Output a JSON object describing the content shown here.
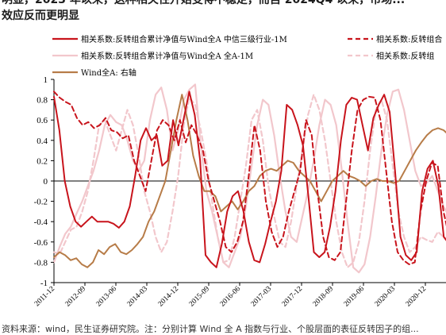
{
  "header": {
    "line1": "明显，2023 年以来，这种相关性开始变得不稳定，而自 2024Q4 以来，市场...",
    "line2": "效应反而更明显"
  },
  "footer": {
    "source": "资料来源：wind，民生证券研究院。注：分别计算 Wind 全 A 指数与行业、个股层面的表征反转因子的组..."
  },
  "colors": {
    "dark_red": "#c8141c",
    "pink": "#f2c7cc",
    "brown": "#b77c48",
    "axis": "#000000"
  },
  "chart_data": {
    "type": "line",
    "title": "",
    "xlabel": "",
    "ylabel": "",
    "ylim": [
      -1,
      1
    ],
    "yticks": [
      "1",
      "0.8",
      "0.6",
      "0.4",
      "0.2",
      "0",
      "-0.2",
      "-0.4",
      "-0.6",
      "-0.8",
      "-1"
    ],
    "xticks": [
      "2011-12",
      "2012-09",
      "2013-06",
      "2014-03",
      "2014-12",
      "2015-09",
      "2016-06",
      "2017-03",
      "2017-12",
      "2018-09",
      "2019-06",
      "2020-03",
      "2020-12"
    ],
    "x_start": "2011-12",
    "x_step": "1M",
    "legend": [
      {
        "label": "相关系数:反转组合累计净值与Wind全A 中信三级行业-1M",
        "style": "solid",
        "color": "#c8141c"
      },
      {
        "label": "相关系数:反转组合",
        "style": "dashed",
        "color": "#c8141c"
      },
      {
        "label": "相关系数:反转组合累计净值与Wind全A 全A-1M",
        "style": "solid",
        "color": "#f2c7cc"
      },
      {
        "label": "相关系数:反转组",
        "style": "dashed",
        "color": "#f2c7cc"
      },
      {
        "label": "Wind全A: 右轴",
        "style": "solid",
        "color": "#b77c48"
      }
    ],
    "series": [
      {
        "name": "相关系数:反转组合累计净值与Wind全A 中信三级行业-1M",
        "style": "solid",
        "color": "#c8141c",
        "values": [
          0.83,
          0.5,
          0.0,
          -0.25,
          -0.4,
          -0.45,
          -0.4,
          -0.35,
          -0.4,
          -0.4,
          -0.4,
          -0.42,
          -0.46,
          -0.4,
          -0.25,
          0.05,
          0.4,
          0.52,
          0.4,
          0.45,
          0.15,
          0.2,
          0.6,
          0.35,
          0.62,
          0.88,
          0.65,
          0.2,
          -0.73,
          -0.8,
          -0.85,
          -0.62,
          -0.3,
          -0.15,
          -0.1,
          -0.3,
          -0.6,
          -0.78,
          -0.8,
          -0.62,
          -0.4,
          -0.2,
          0.1,
          0.75,
          0.7,
          0.55,
          0.35,
          -0.15,
          -0.7,
          -0.75,
          -0.7,
          -0.45,
          -0.1,
          0.4,
          0.75,
          0.82,
          0.8,
          0.55,
          0.3,
          0.62,
          0.75,
          0.85,
          0.68,
          0.1,
          -0.55,
          -0.73,
          -0.78,
          -0.7,
          -0.1,
          0.12,
          0.2,
          -0.05,
          -0.55,
          -0.62
        ]
      },
      {
        "name": "相关系数:反转组合",
        "style": "dashed",
        "color": "#c8141c",
        "values": [
          0.88,
          0.82,
          0.78,
          0.75,
          0.62,
          0.55,
          0.58,
          0.52,
          0.55,
          0.62,
          0.5,
          0.48,
          0.42,
          0.45,
          0.2,
          0.05,
          -0.1,
          0.2,
          0.5,
          0.6,
          0.55,
          0.4,
          0.6,
          0.38,
          0.55,
          0.45,
          0.3,
          0.0,
          -0.2,
          -0.4,
          -0.65,
          -0.7,
          -0.6,
          -0.4,
          0.05,
          0.55,
          0.3,
          -0.2,
          -0.5,
          -0.65,
          -0.55,
          -0.3,
          -0.1,
          0.1,
          0.6,
          0.45,
          -0.1,
          -0.55,
          -0.75,
          -0.78,
          -0.7,
          -0.2,
          0.3,
          0.7,
          0.8,
          0.83,
          0.82,
          0.6,
          0.1,
          -0.4,
          -0.7,
          -0.78,
          -0.82,
          -0.8,
          -0.3,
          0.0,
          0.18,
          0.15,
          -0.3,
          -0.55
        ]
      },
      {
        "name": "相关系数:反转组合累计净值与Wind全A 全A-1M",
        "style": "solid",
        "color": "#f2c7cc",
        "values": [
          -0.8,
          -0.65,
          -0.52,
          -0.45,
          -0.32,
          -0.2,
          -0.05,
          0.1,
          0.3,
          0.55,
          0.65,
          0.58,
          0.55,
          0.4,
          0.2,
          0.1,
          0.2,
          0.6,
          0.85,
          0.92,
          0.7,
          0.3,
          0.5,
          0.8,
          0.9,
          0.95,
          0.35,
          -0.1,
          -0.3,
          -0.55,
          -0.8,
          -0.85,
          -0.7,
          -0.55,
          -0.25,
          0.15,
          0.55,
          0.8,
          0.75,
          0.45,
          0.05,
          -0.3,
          -0.55,
          -0.6,
          -0.35,
          -0.1,
          0.2,
          0.55,
          0.8,
          0.75,
          0.55,
          0.1,
          -0.4,
          -0.85,
          -0.9,
          -0.82,
          -0.55,
          -0.15,
          0.3,
          0.65,
          0.88,
          0.9,
          0.7,
          0.4,
          0.1,
          -0.05,
          -0.02,
          0.05,
          -0.1,
          -0.25,
          -0.35
        ]
      },
      {
        "name": "相关系数:反转组",
        "style": "dashed",
        "color": "#f2c7cc",
        "values": [
          -0.7,
          -0.72,
          -0.6,
          -0.48,
          -0.45,
          -0.3,
          -0.1,
          0.2,
          0.55,
          0.6,
          0.45,
          0.3,
          0.5,
          0.7,
          0.55,
          0.25,
          -0.1,
          -0.3,
          -0.55,
          -0.7,
          -0.6,
          -0.3,
          0.05,
          0.55,
          0.82,
          0.75,
          0.5,
          0.2,
          -0.2,
          -0.55,
          -0.8,
          -0.78,
          -0.55,
          -0.2,
          0.15,
          0.6,
          0.7,
          0.4,
          -0.05,
          -0.35,
          -0.6,
          -0.65,
          -0.4,
          -0.05,
          0.3,
          0.65,
          0.85,
          0.7,
          0.4,
          0.0,
          -0.4,
          -0.7,
          -0.85,
          -0.8,
          -0.6,
          -0.2,
          0.3,
          0.7,
          0.8,
          0.6,
          0.15,
          -0.3,
          -0.55,
          -0.7,
          -0.65,
          -0.55,
          -0.58,
          -0.6,
          -0.5,
          -0.55,
          -0.58
        ]
      },
      {
        "name": "Wind全A: 右轴",
        "style": "solid",
        "color": "#b77c48",
        "values": [
          -0.75,
          -0.7,
          -0.73,
          -0.78,
          -0.76,
          -0.82,
          -0.85,
          -0.8,
          -0.68,
          -0.72,
          -0.65,
          -0.62,
          -0.7,
          -0.72,
          -0.68,
          -0.62,
          -0.55,
          -0.4,
          -0.3,
          -0.15,
          0.0,
          0.3,
          0.6,
          0.85,
          0.6,
          0.25,
          0.05,
          -0.1,
          -0.1,
          -0.15,
          -0.3,
          -0.25,
          -0.2,
          -0.28,
          -0.2,
          -0.1,
          -0.05,
          0.05,
          0.1,
          0.12,
          0.1,
          0.15,
          0.2,
          0.18,
          0.1,
          0.05,
          0.0,
          -0.1,
          -0.2,
          -0.1,
          0.0,
          0.05,
          0.1,
          0.05,
          0.03,
          0.0,
          -0.05,
          0.0,
          0.02,
          0.0,
          0.0,
          -0.02,
          0.0,
          0.1,
          0.2,
          0.3,
          0.38,
          0.45,
          0.5,
          0.52,
          0.5,
          0.45
        ]
      }
    ]
  }
}
